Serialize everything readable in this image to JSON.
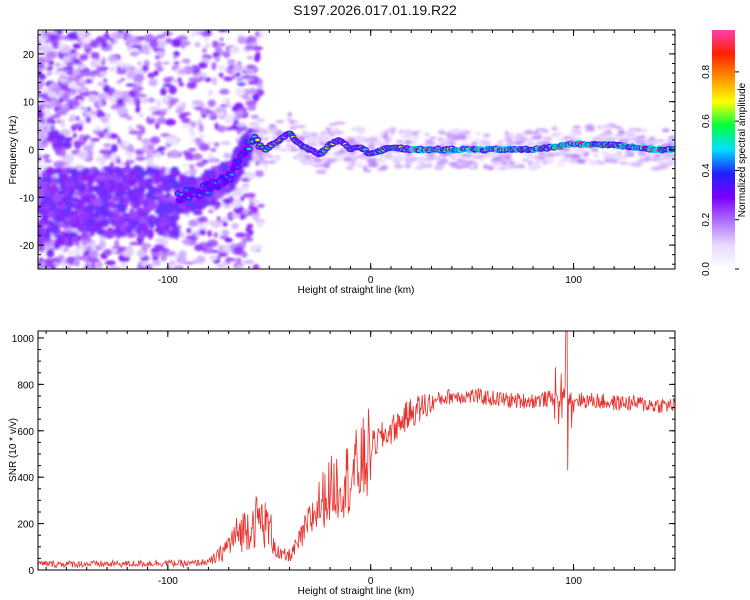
{
  "title": "S197.2026.017.01.19.R22",
  "chart_data": [
    {
      "type": "heatmap",
      "xlabel": "Height of straight line (km)",
      "ylabel": "Frequency (Hz)",
      "xlim": [
        -164,
        150
      ],
      "ylim": [
        -25,
        25
      ],
      "x_ticks": [
        -100,
        0,
        100
      ],
      "x_tick_labels": [
        "-100",
        "0",
        "100"
      ],
      "y_ticks": [
        -20,
        -10,
        0,
        10,
        20
      ],
      "y_tick_labels": [
        "-20",
        "-10",
        "0",
        "10",
        "20"
      ],
      "colorbar": {
        "label": "Normalized spectral amplitude",
        "range": [
          0,
          0.97
        ],
        "ticks": [
          0.0,
          0.2,
          0.4,
          0.6,
          0.8
        ],
        "tick_labels": [
          "0.0",
          "0.2",
          "0.4",
          "0.6",
          "0.8"
        ],
        "colors": [
          "#ffffff",
          "#e8d8ff",
          "#b070ff",
          "#7a00ff",
          "#2020ff",
          "#00e0ff",
          "#00ff40",
          "#ffff00",
          "#ff9000",
          "#ff2000",
          "#ff40b0"
        ]
      },
      "ridge": {
        "x": [
          -95,
          -85,
          -75,
          -68,
          -62,
          -58,
          -52,
          -45,
          -40,
          -35,
          -30,
          -25,
          -20,
          -15,
          -10,
          -5,
          0,
          10,
          20,
          40,
          60,
          80,
          90,
          100,
          110,
          120,
          130,
          140,
          150
        ],
        "y": [
          -10,
          -9,
          -7,
          -5,
          0,
          2,
          0,
          2,
          3.5,
          1,
          0,
          -1,
          1,
          2,
          0,
          0.5,
          -1,
          0.5,
          0,
          0,
          0,
          0,
          0.5,
          1.2,
          1,
          1,
          0.5,
          0,
          0
        ]
      }
    },
    {
      "type": "line",
      "xlabel": "Height of straight line (km)",
      "ylabel": "SNR (10 * v/v)",
      "xlim": [
        -164,
        150
      ],
      "ylim": [
        0,
        1030
      ],
      "x_ticks": [
        -100,
        0,
        100
      ],
      "x_tick_labels": [
        "-100",
        "0",
        "100"
      ],
      "y_ticks": [
        0,
        200,
        400,
        600,
        800,
        1000
      ],
      "y_tick_labels": [
        "0",
        "200",
        "400",
        "600",
        "800",
        "1000"
      ],
      "series": [
        {
          "name": "SNR",
          "color": "#e8302a",
          "x": [
            -164,
            -140,
            -120,
            -100,
            -90,
            -80,
            -75,
            -70,
            -65,
            -60,
            -55,
            -50,
            -45,
            -40,
            -35,
            -30,
            -25,
            -20,
            -15,
            -10,
            -5,
            0,
            5,
            10,
            15,
            20,
            25,
            30,
            35,
            40,
            50,
            60,
            70,
            80,
            90,
            95,
            97,
            99,
            105,
            110,
            120,
            130,
            140,
            150
          ],
          "y": [
            20,
            20,
            20,
            25,
            20,
            30,
            60,
            110,
            160,
            190,
            220,
            180,
            60,
            60,
            130,
            220,
            300,
            360,
            390,
            420,
            470,
            530,
            570,
            600,
            640,
            680,
            700,
            720,
            740,
            750,
            750,
            740,
            730,
            730,
            740,
            760,
            780,
            740,
            730,
            730,
            720,
            720,
            710,
            710
          ]
        }
      ]
    }
  ]
}
